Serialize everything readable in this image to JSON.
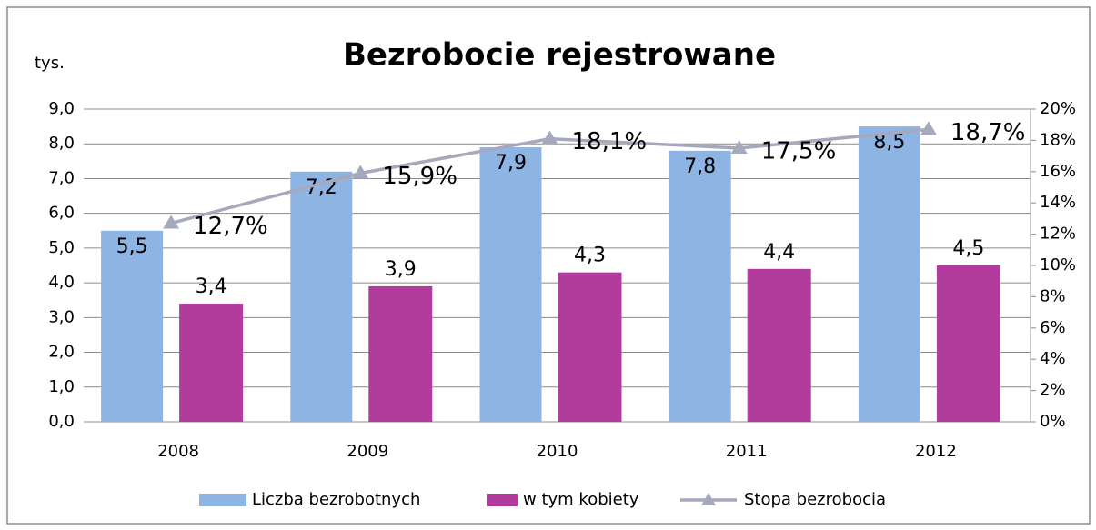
{
  "chart_data": {
    "type": "bar",
    "title": "Bezrobocie rejestrowane",
    "y_axis_label": "tys.",
    "categories": [
      "2008",
      "2009",
      "2010",
      "2011",
      "2012"
    ],
    "series": [
      {
        "name": "Liczba bezrobotnych",
        "type": "bar",
        "color": "#8db4e2",
        "values": [
          5.5,
          7.2,
          7.9,
          7.8,
          8.5
        ],
        "value_labels": [
          "5,5",
          "7,2",
          "7,9",
          "7,8",
          "8,5"
        ]
      },
      {
        "name": "w tym kobiety",
        "type": "bar",
        "color": "#b23c9c",
        "values": [
          3.4,
          3.9,
          4.3,
          4.4,
          4.5
        ],
        "value_labels": [
          "3,4",
          "3,9",
          "4,3",
          "4,4",
          "4,5"
        ]
      },
      {
        "name": "Stopa bezrobocia",
        "type": "line",
        "axis": "y2",
        "color": "#a6a9bd",
        "values": [
          12.7,
          15.9,
          18.1,
          17.5,
          18.7
        ],
        "value_labels": [
          "12,7%",
          "15,9%",
          "18,1%",
          "17,5%",
          "18,7%"
        ]
      }
    ],
    "ylim": [
      0,
      9
    ],
    "yticks": [
      {
        "value": 0,
        "label": "0,0"
      },
      {
        "value": 1,
        "label": "1,0"
      },
      {
        "value": 2,
        "label": "2,0"
      },
      {
        "value": 3,
        "label": "3,0"
      },
      {
        "value": 4,
        "label": "4,0"
      },
      {
        "value": 5,
        "label": "5,0"
      },
      {
        "value": 6,
        "label": "6,0"
      },
      {
        "value": 7,
        "label": "7,0"
      },
      {
        "value": 8,
        "label": "8,0"
      },
      {
        "value": 9,
        "label": "9,0"
      }
    ],
    "y2lim": [
      0,
      20
    ],
    "y2ticks": [
      {
        "value": 0,
        "label": "0%"
      },
      {
        "value": 2,
        "label": "2%"
      },
      {
        "value": 4,
        "label": "4%"
      },
      {
        "value": 6,
        "label": "6%"
      },
      {
        "value": 8,
        "label": "8%"
      },
      {
        "value": 10,
        "label": "10%"
      },
      {
        "value": 12,
        "label": "12%"
      },
      {
        "value": 14,
        "label": "14%"
      },
      {
        "value": 16,
        "label": "16%"
      },
      {
        "value": 18,
        "label": "18%"
      },
      {
        "value": 20,
        "label": "20%"
      }
    ],
    "grid": true,
    "legend": "bottom"
  }
}
